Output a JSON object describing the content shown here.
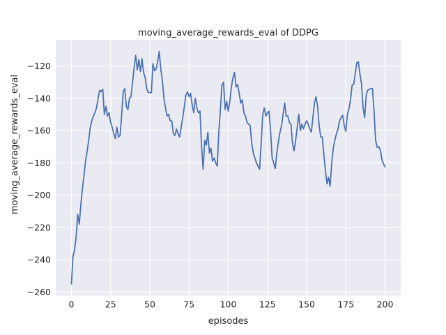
{
  "chart_data": {
    "type": "line",
    "title": "moving_average_rewards_eval of DDPG",
    "xlabel": "episodes",
    "ylabel": "moving_average_rewards_eval",
    "x_ticks": [
      0,
      25,
      50,
      75,
      100,
      125,
      150,
      175,
      200
    ],
    "y_ticks": [
      -120,
      -140,
      -160,
      -180,
      -200,
      -220,
      -240,
      -260
    ],
    "xlim": [
      -10,
      210
    ],
    "ylim": [
      -262.2,
      -103.8
    ],
    "grid": "on",
    "legend": "none",
    "axes_bg_color": "#eaeaf2",
    "grid_color": "#ffffff",
    "line_color": "#4c72b0",
    "text_color": "#262626",
    "series": [
      {
        "name": "moving_average_rewards_eval",
        "x_start": 0,
        "x_step": 1,
        "values": [
          -255,
          -238,
          -234,
          -226,
          -212,
          -218,
          -206,
          -196,
          -188,
          -179,
          -173,
          -166,
          -158,
          -154,
          -151,
          -149,
          -146,
          -140,
          -135,
          -136,
          -134.5,
          -150,
          -145,
          -151,
          -149,
          -155,
          -158,
          -162,
          -165,
          -158,
          -164,
          -163,
          -151,
          -136,
          -134,
          -145,
          -147,
          -140,
          -139,
          -130,
          -121,
          -113.5,
          -122.5,
          -116,
          -123.5,
          -115.5,
          -124,
          -127,
          -134,
          -136.5,
          -136.5,
          -136.5,
          -118.5,
          -123,
          -122,
          -117.5,
          -111,
          -122,
          -129,
          -140,
          -146,
          -151,
          -150,
          -154,
          -154,
          -162,
          -163,
          -159,
          -162,
          -164,
          -158,
          -152,
          -145,
          -138,
          -136,
          -139,
          -137,
          -144,
          -149,
          -140,
          -146,
          -149,
          -148,
          -170,
          -184,
          -166,
          -169,
          -161,
          -174,
          -171,
          -179,
          -177,
          -180,
          -182,
          -161,
          -147,
          -132,
          -130,
          -147,
          -142,
          -148,
          -142,
          -133,
          -127.5,
          -124,
          -133,
          -131.5,
          -137,
          -143,
          -141,
          -149,
          -151,
          -155,
          -156,
          -157,
          -168,
          -174,
          -177,
          -180,
          -182,
          -184,
          -168,
          -150,
          -146,
          -151,
          -149,
          -148,
          -160,
          -177,
          -180,
          -183.5,
          -174,
          -167,
          -161,
          -157,
          -150,
          -143,
          -151,
          -151,
          -155,
          -156,
          -168,
          -172.5,
          -166,
          -158,
          -150,
          -160,
          -156,
          -159,
          -156,
          -154,
          -156,
          -159,
          -161,
          -152,
          -143,
          -139,
          -145,
          -157,
          -164,
          -164,
          -175,
          -185,
          -193,
          -189,
          -194.5,
          -180,
          -171,
          -166,
          -162,
          -159,
          -154,
          -152,
          -150.5,
          -157,
          -160.5,
          -150,
          -146.5,
          -141,
          -132,
          -131.5,
          -125,
          -118,
          -117.5,
          -125,
          -131,
          -146,
          -152,
          -138,
          -135,
          -134.5,
          -134,
          -134,
          -148,
          -166,
          -170.5,
          -170,
          -172,
          -178,
          -180.5,
          -182.5
        ]
      }
    ]
  }
}
